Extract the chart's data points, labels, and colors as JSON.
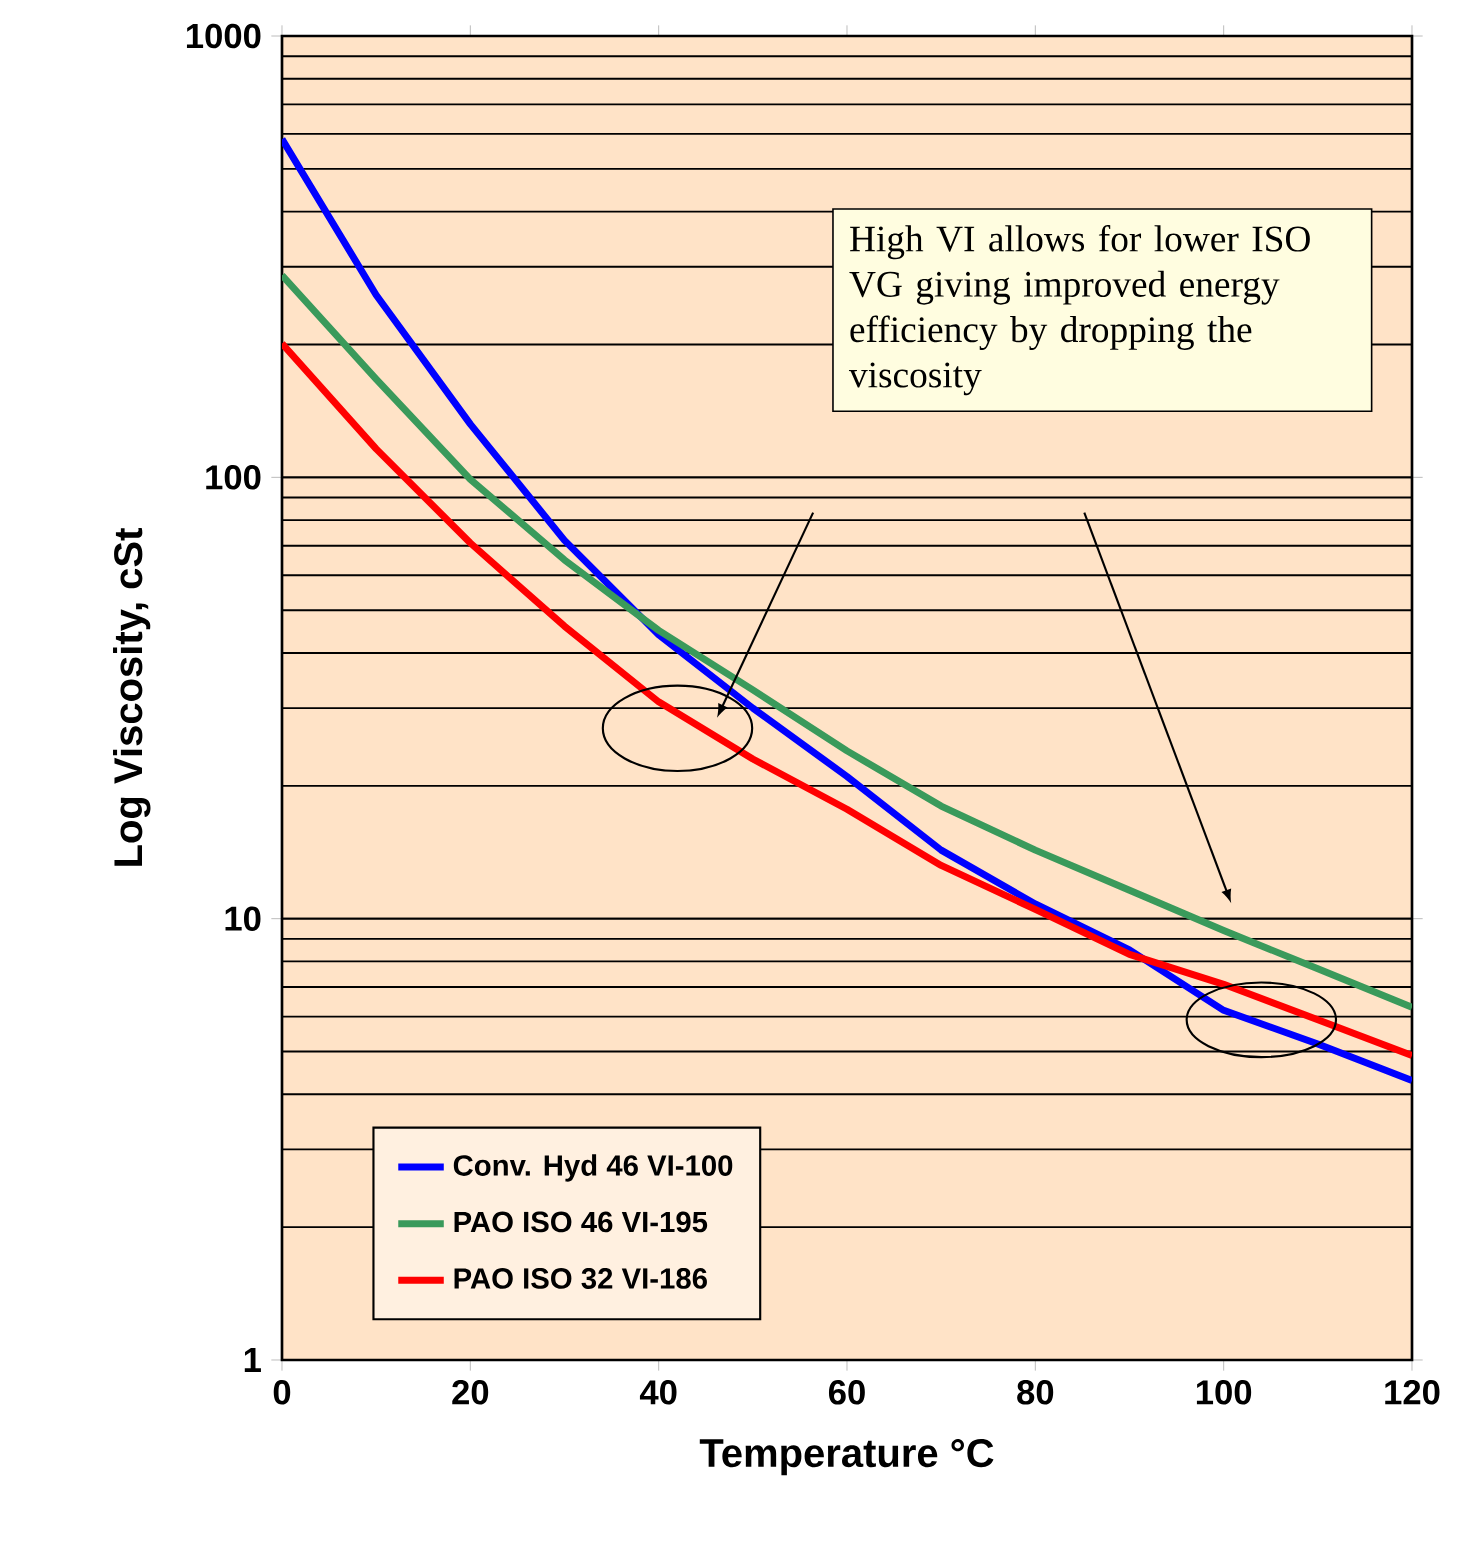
{
  "chart_data": {
    "type": "line",
    "xlabel": "Temperature °C",
    "ylabel": "Log Viscosity, cSt",
    "log": "y",
    "grid": "y",
    "legend": "bottom left",
    "x": [
      0,
      10,
      20,
      30,
      40,
      50,
      60,
      70,
      80,
      90,
      100,
      110,
      120
    ],
    "xlim": [
      0,
      120
    ],
    "xticks": [
      0,
      20,
      40,
      60,
      80,
      100,
      120
    ],
    "ylim": [
      1,
      1000
    ],
    "yticks": [
      1,
      10,
      100,
      1000
    ],
    "series": [
      {
        "name": "Conv. Hyd 46 VI-100",
        "color": "#0000ff",
        "values": [
          584,
          259,
          132,
          72,
          44,
          30,
          21,
          14.3,
          10.8,
          8.5,
          6.2,
          5.2,
          4.3
        ]
      },
      {
        "name": "PAO ISO 46 VI-195",
        "color": "#3a9a5b",
        "values": [
          287,
          167,
          99,
          65,
          45,
          33,
          24,
          18,
          14.3,
          11.6,
          9.4,
          7.7,
          6.3
        ]
      },
      {
        "name": "PAO ISO 32 VI-186",
        "color": "#ff0000",
        "values": [
          201,
          116,
          71,
          46,
          31,
          23,
          17.7,
          13.2,
          10.5,
          8.3,
          7.1,
          5.9,
          4.9
        ]
      }
    ],
    "annotations": [
      "High VI allows for lower ISO VG giving improved energy efficiency by dropping the viscosity"
    ]
  }
}
